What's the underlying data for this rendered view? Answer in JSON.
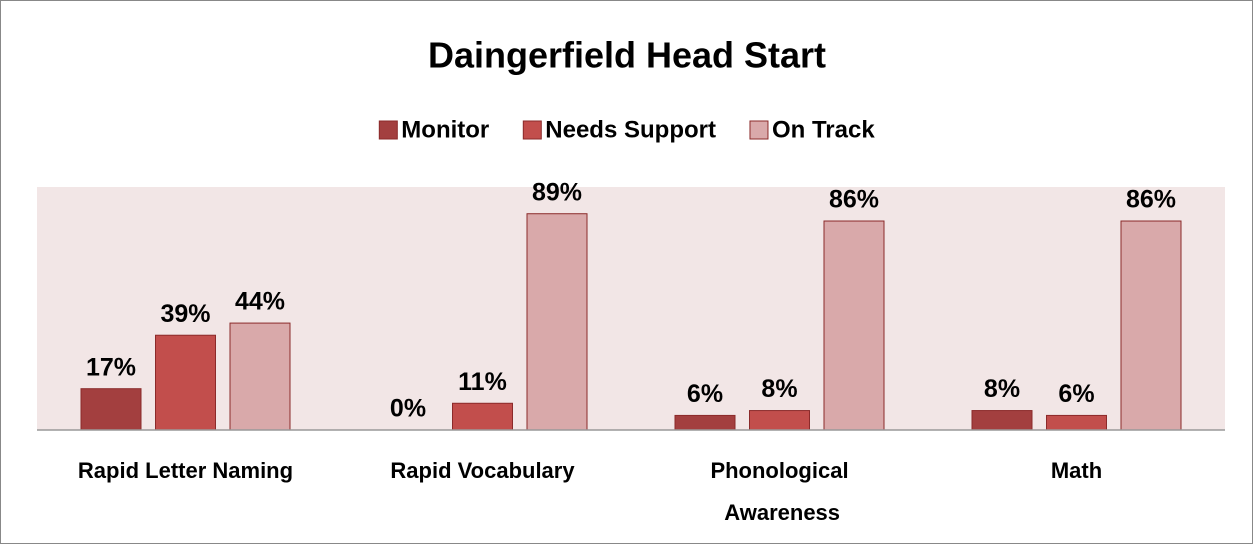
{
  "chart_data": {
    "type": "bar",
    "title": "Daingerfield Head Start",
    "categories": [
      "Rapid Letter Naming",
      "Rapid Vocabulary",
      "Phonological Awareness",
      "Math"
    ],
    "series": [
      {
        "name": "Monitor",
        "color": "#a33f3f",
        "values": [
          17,
          0,
          6,
          8
        ],
        "value_labels": [
          "17%",
          "0%",
          "6%",
          "8%"
        ]
      },
      {
        "name": "Needs Support",
        "color": "#c24e4c",
        "values": [
          39,
          11,
          8,
          6
        ],
        "value_labels": [
          "39%",
          "11%",
          "8%",
          "6%"
        ]
      },
      {
        "name": "On Track",
        "color": "#d9a9aa",
        "values": [
          44,
          89,
          86,
          86
        ],
        "value_labels": [
          "44%",
          "89%",
          "86%",
          "86%"
        ]
      }
    ],
    "ylim": [
      0,
      100
    ],
    "legend": "top"
  }
}
